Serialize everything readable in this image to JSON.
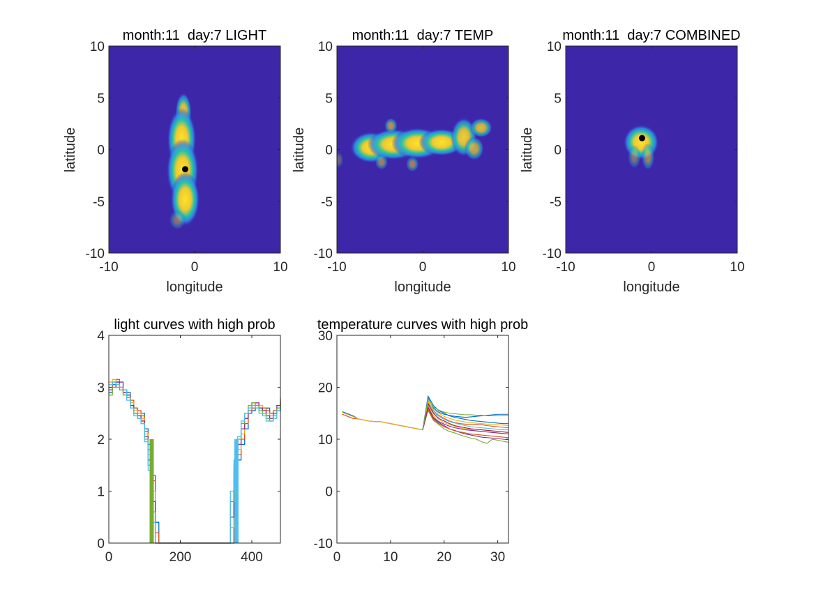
{
  "colors": {
    "map_background": "#3e26a8",
    "map_low": "#2f8ef0",
    "map_mid": "#24c4a4",
    "map_high": "#f2c82e",
    "map_peak": "#f9e52a",
    "marker": "#000000",
    "axis": "#262626",
    "series_palette": [
      "#0072bd",
      "#d95319",
      "#edb120",
      "#7e2f8e",
      "#77ac30",
      "#4dbeee",
      "#a2142f"
    ]
  },
  "chart_data": [
    {
      "type": "heatmap",
      "title": "month:11  day:7 LIGHT",
      "xlabel": "longitude",
      "ylabel": "latitude",
      "xlim": [
        -10,
        10
      ],
      "ylim": [
        -10,
        10
      ],
      "xticks": [
        "-10",
        "0",
        "10"
      ],
      "yticks": [
        "10",
        "5",
        "0",
        "-5",
        "-10"
      ],
      "estimated_location": {
        "lon": -1.1,
        "lat": -1.9
      },
      "high_prob_blobs": [
        {
          "lon": -1.3,
          "lat": 3.6,
          "r_lon": 0.5,
          "r_lat": 1.0,
          "w": 0.9
        },
        {
          "lon": -1.5,
          "lat": 1.0,
          "r_lon": 0.9,
          "r_lat": 1.6,
          "w": 1.0
        },
        {
          "lon": -1.4,
          "lat": -2.0,
          "r_lon": 1.0,
          "r_lat": 1.6,
          "w": 1.0
        },
        {
          "lon": -1.1,
          "lat": -4.8,
          "r_lon": 0.9,
          "r_lat": 1.4,
          "w": 1.0
        },
        {
          "lon": -2.0,
          "lat": -6.8,
          "r_lon": 0.5,
          "r_lat": 0.5,
          "w": 0.4
        }
      ]
    },
    {
      "type": "heatmap",
      "title": "month:11  day:7 TEMP",
      "xlabel": "longitude",
      "ylabel": "latitude",
      "xlim": [
        -10,
        10
      ],
      "ylim": [
        -10,
        10
      ],
      "xticks": [
        "-10",
        "0",
        "10"
      ],
      "yticks": [
        "10",
        "5",
        "0",
        "-5",
        "-10"
      ],
      "high_prob_blobs": [
        {
          "lon": -6.0,
          "lat": 0.2,
          "r_lon": 1.3,
          "r_lat": 0.8,
          "w": 1.0
        },
        {
          "lon": -3.4,
          "lat": 0.5,
          "r_lon": 1.6,
          "r_lat": 0.8,
          "w": 1.0
        },
        {
          "lon": -0.6,
          "lat": 0.6,
          "r_lon": 1.6,
          "r_lat": 0.8,
          "w": 1.0
        },
        {
          "lon": 2.2,
          "lat": 0.7,
          "r_lon": 1.4,
          "r_lat": 0.7,
          "w": 1.0
        },
        {
          "lon": 4.8,
          "lat": 1.2,
          "r_lon": 0.8,
          "r_lat": 1.0,
          "w": 0.9
        },
        {
          "lon": 6.8,
          "lat": 2.1,
          "r_lon": 0.7,
          "r_lat": 0.5,
          "w": 0.8
        },
        {
          "lon": 6.0,
          "lat": 0.1,
          "r_lon": 0.6,
          "r_lat": 0.6,
          "w": 0.7
        },
        {
          "lon": -3.7,
          "lat": 2.3,
          "r_lon": 0.4,
          "r_lat": 0.4,
          "w": 0.6
        },
        {
          "lon": -4.8,
          "lat": -1.2,
          "r_lon": 0.4,
          "r_lat": 0.4,
          "w": 0.5
        },
        {
          "lon": -1.2,
          "lat": -1.4,
          "r_lon": 0.4,
          "r_lat": 0.4,
          "w": 0.5
        },
        {
          "lon": -9.8,
          "lat": -1.0,
          "r_lon": 0.3,
          "r_lat": 0.4,
          "w": 0.3
        }
      ]
    },
    {
      "type": "heatmap",
      "title": "month:11  day:7 COMBINED",
      "xlabel": "longitude",
      "ylabel": "latitude",
      "xlim": [
        -10,
        10
      ],
      "ylim": [
        -10,
        10
      ],
      "xticks": [
        "-10",
        "0",
        "10"
      ],
      "yticks": [
        "10",
        "5",
        "0",
        "-5",
        "-10"
      ],
      "estimated_location": {
        "lon": -1.1,
        "lat": 1.1
      },
      "high_prob_blobs": [
        {
          "lon": -1.2,
          "lat": 0.7,
          "r_lon": 1.1,
          "r_lat": 0.9,
          "w": 1.0
        },
        {
          "lon": -0.4,
          "lat": -0.7,
          "r_lon": 0.4,
          "r_lat": 0.7,
          "w": 0.5
        },
        {
          "lon": -2.0,
          "lat": -0.7,
          "r_lon": 0.4,
          "r_lat": 0.6,
          "w": 0.4
        }
      ]
    },
    {
      "type": "line",
      "title": "light curves with high prob",
      "xlabel": "",
      "ylabel": "",
      "xlim": [
        0,
        480
      ],
      "ylim": [
        0,
        4
      ],
      "xticks": [
        "0",
        "200",
        "400"
      ],
      "yticks": [
        "4",
        "3",
        "2",
        "1",
        "0"
      ],
      "x": [
        0,
        10,
        20,
        30,
        40,
        50,
        60,
        70,
        80,
        90,
        100,
        110,
        120,
        130,
        140,
        340,
        350,
        360,
        370,
        380,
        390,
        400,
        410,
        420,
        430,
        440,
        450,
        460,
        470,
        480
      ],
      "series": [
        {
          "values": [
            2.9,
            3.05,
            3.1,
            3.0,
            2.95,
            2.9,
            2.7,
            2.6,
            2.5,
            2.5,
            2.2,
            1.9,
            1.3,
            0.4,
            0.0,
            0.0,
            1.0,
            1.6,
            1.9,
            2.2,
            2.5,
            2.55,
            2.6,
            2.6,
            2.6,
            2.6,
            2.5,
            2.5,
            2.55,
            2.6
          ]
        },
        {
          "values": [
            3.0,
            3.1,
            3.15,
            3.0,
            2.95,
            2.85,
            2.75,
            2.6,
            2.55,
            2.45,
            2.15,
            1.8,
            1.2,
            0.2,
            0.0,
            0.0,
            1.1,
            1.7,
            2.0,
            2.3,
            2.55,
            2.6,
            2.65,
            2.6,
            2.6,
            2.55,
            2.5,
            2.55,
            2.6,
            2.7
          ]
        },
        {
          "values": [
            3.1,
            3.15,
            3.05,
            2.95,
            2.9,
            2.8,
            2.7,
            2.55,
            2.5,
            2.4,
            2.1,
            1.7,
            1.0,
            0.0,
            0.0,
            0.3,
            1.3,
            1.8,
            2.1,
            2.4,
            2.6,
            2.65,
            2.7,
            2.65,
            2.55,
            2.5,
            2.45,
            2.5,
            2.6,
            2.75
          ]
        },
        {
          "values": [
            2.95,
            3.0,
            3.1,
            3.1,
            2.9,
            2.85,
            2.65,
            2.5,
            2.45,
            2.35,
            2.05,
            1.6,
            0.8,
            0.0,
            0.0,
            0.5,
            1.4,
            1.9,
            2.2,
            2.4,
            2.6,
            2.7,
            2.7,
            2.6,
            2.55,
            2.45,
            2.4,
            2.5,
            2.65,
            2.8
          ]
        },
        {
          "values": [
            2.85,
            3.0,
            3.0,
            2.95,
            2.85,
            2.8,
            2.6,
            2.5,
            2.4,
            2.3,
            2.0,
            1.5,
            0.6,
            0.0,
            0.0,
            0.8,
            1.5,
            2.0,
            2.3,
            2.5,
            2.65,
            2.7,
            2.65,
            2.55,
            2.5,
            2.4,
            2.35,
            2.45,
            2.6,
            2.7
          ]
        },
        {
          "values": [
            3.05,
            3.1,
            3.05,
            3.0,
            2.95,
            2.75,
            2.6,
            2.45,
            2.4,
            2.3,
            1.95,
            1.4,
            0.4,
            0.0,
            0.0,
            1.0,
            1.6,
            2.05,
            2.35,
            2.5,
            2.6,
            2.65,
            2.6,
            2.5,
            2.45,
            2.35,
            2.35,
            2.4,
            2.55,
            2.65
          ]
        }
      ],
      "bars": [
        {
          "x": 120,
          "height": 2.0,
          "color": "#77ac30"
        },
        {
          "x": 357,
          "height": 2.0,
          "color": "#4dbeee"
        }
      ]
    },
    {
      "type": "line",
      "title": "temperature curves with high prob",
      "xlabel": "",
      "ylabel": "",
      "xlim": [
        0,
        32
      ],
      "ylim": [
        -10,
        30
      ],
      "xticks": [
        "0",
        "10",
        "20",
        "30"
      ],
      "yticks": [
        "30",
        "20",
        "10",
        "0",
        "-10"
      ],
      "x": [
        1,
        2,
        3,
        4,
        5,
        6,
        7,
        8,
        9,
        10,
        11,
        12,
        13,
        14,
        15,
        16,
        17,
        18,
        19,
        20,
        21,
        22,
        23,
        24,
        25,
        26,
        27,
        28,
        29,
        30,
        31,
        32
      ],
      "base_values": [
        15.0,
        14.6,
        14.2,
        13.9,
        13.7,
        13.5,
        13.4,
        13.4,
        13.2,
        13.0,
        12.8,
        12.6,
        12.4,
        12.2,
        12.0,
        11.8
      ],
      "after_values": [
        [
          18.0,
          16.0,
          15.2,
          14.8,
          14.6,
          14.4,
          14.3,
          14.2,
          14.3,
          14.4,
          14.5,
          14.6,
          14.7,
          14.8,
          14.8,
          14.8
        ],
        [
          17.0,
          15.5,
          14.6,
          14.0,
          13.5,
          13.2,
          13.0,
          12.9,
          12.8,
          12.9,
          12.8,
          12.6,
          12.5,
          12.4,
          12.3,
          12.2
        ],
        [
          16.5,
          14.5,
          13.8,
          13.2,
          12.8,
          12.5,
          12.2,
          12.0,
          11.8,
          11.6,
          11.5,
          11.4,
          11.3,
          11.2,
          11.1,
          11.0
        ],
        [
          16.0,
          14.0,
          13.2,
          12.6,
          12.0,
          11.7,
          11.3,
          11.0,
          10.8,
          10.6,
          10.4,
          10.3,
          10.2,
          10.1,
          10.0,
          9.9
        ],
        [
          15.5,
          13.6,
          12.8,
          12.0,
          11.5,
          11.2,
          10.8,
          10.5,
          10.2,
          10.0,
          9.5,
          9.2,
          10.0,
          9.8,
          9.6,
          9.4
        ],
        [
          17.5,
          15.2,
          14.4,
          13.8,
          13.4,
          13.1,
          12.8,
          12.6,
          12.4,
          12.3,
          12.2,
          12.1,
          12.0,
          11.9,
          11.8,
          11.8
        ],
        [
          16.8,
          15.0,
          14.0,
          13.5,
          13.0,
          12.6,
          12.4,
          12.2,
          12.0,
          11.9,
          11.8,
          11.7,
          11.6,
          11.5,
          11.4,
          11.3
        ],
        [
          18.3,
          16.5,
          15.5,
          15.0,
          14.5,
          14.2,
          14.0,
          13.8,
          13.6,
          13.5,
          13.4,
          13.3,
          13.2,
          13.1,
          13.0,
          13.0
        ],
        [
          15.8,
          13.8,
          13.0,
          12.4,
          12.0,
          11.6,
          11.4,
          11.2,
          11.0,
          10.9,
          10.8,
          10.7,
          10.6,
          10.5,
          10.4,
          10.3
        ],
        [
          17.2,
          15.8,
          15.0,
          14.4,
          14.0,
          13.7,
          13.5,
          13.3,
          13.2,
          13.1,
          13.0,
          12.9,
          12.8,
          12.8,
          12.7,
          12.6
        ],
        [
          16.2,
          14.2,
          13.4,
          12.9,
          12.5,
          12.2,
          12.0,
          11.8,
          11.7,
          11.6,
          11.5,
          11.4,
          11.3,
          11.2,
          11.1,
          11.0
        ],
        [
          17.8,
          16.2,
          15.6,
          15.2,
          15.0,
          14.9,
          14.8,
          14.7,
          14.7,
          14.6,
          14.6,
          14.5,
          14.5,
          14.5,
          14.5,
          14.5
        ]
      ]
    }
  ]
}
